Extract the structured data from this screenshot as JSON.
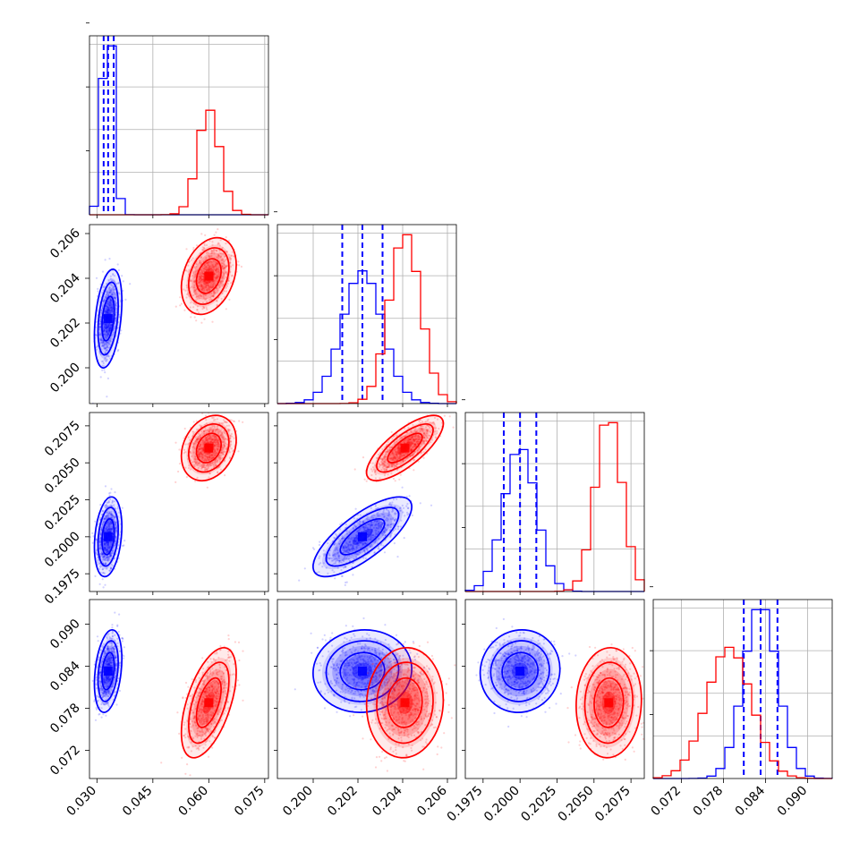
{
  "chart_data": {
    "type": "corner",
    "grid": true,
    "series": [
      {
        "color": "#0000ff",
        "mean": [
          0.033,
          0.2022,
          0.2,
          0.0833
        ],
        "sd": [
          0.0015,
          0.0009,
          0.0011,
          0.0024
        ],
        "corr": [
          [
            1,
            0.35,
            0.25,
            0.3
          ],
          [
            0.35,
            1,
            0.75,
            0.05
          ],
          [
            0.25,
            0.75,
            1,
            0.05
          ],
          [
            0.3,
            0.05,
            0.05,
            1
          ]
        ],
        "quantile_lines": [
          [
            0.0318,
            0.033,
            0.0345
          ],
          [
            0.2013,
            0.2022,
            0.2031
          ],
          [
            0.1989,
            0.2,
            0.2011
          ],
          [
            0.0809,
            0.0833,
            0.0857
          ]
        ]
      },
      {
        "color": "#ff0000",
        "mean": [
          0.06,
          0.2041,
          0.206,
          0.0788
        ],
        "sd": [
          0.003,
          0.0007,
          0.0009,
          0.0032
        ],
        "corr": [
          [
            1,
            0.3,
            0.25,
            0.55
          ],
          [
            0.3,
            1,
            0.75,
            0.05
          ],
          [
            0.25,
            0.75,
            1,
            0.05
          ],
          [
            0.55,
            0.05,
            0.05,
            1
          ]
        ]
      }
    ],
    "parameters": [
      {
        "range": [
          0.028,
          0.076
        ],
        "ticks": [
          "0.030",
          "0.045",
          "0.060",
          "0.075"
        ],
        "tick_values": [
          0.03,
          0.045,
          0.06,
          0.075
        ]
      },
      {
        "range": [
          0.1984,
          0.2064
        ],
        "ticks": [
          "0.200",
          "0.202",
          "0.204",
          "0.206"
        ],
        "tick_values": [
          0.2,
          0.202,
          0.204,
          0.206
        ]
      },
      {
        "range": [
          0.1963,
          0.2084
        ],
        "ticks": [
          "0.1975",
          "0.2000",
          "0.2025",
          "0.2050",
          "0.2075"
        ],
        "tick_values": [
          0.1975,
          0.2,
          0.2025,
          0.205,
          0.2075
        ]
      },
      {
        "range": [
          0.068,
          0.0935
        ],
        "ticks": [
          "0.072",
          "0.078",
          "0.084",
          "0.090"
        ],
        "tick_values": [
          0.072,
          0.078,
          0.084,
          0.09
        ]
      }
    ]
  }
}
